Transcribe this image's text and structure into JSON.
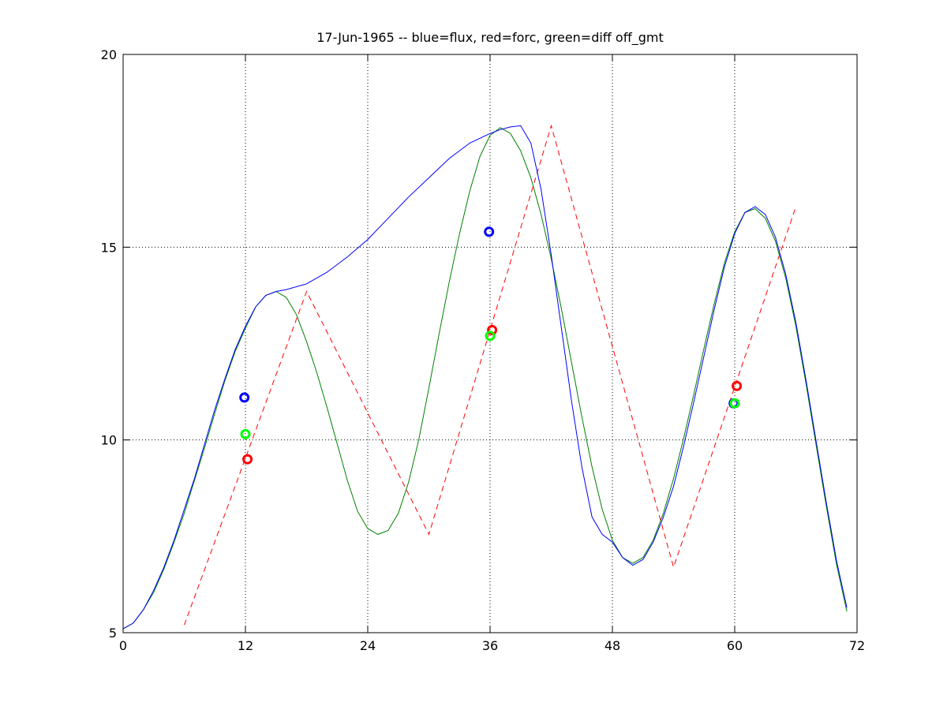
{
  "chart_data": {
    "type": "line",
    "title": "17-Jun-1965 -- blue=flux, red=forc, green=diff off_gmt",
    "xlabel": "",
    "ylabel": "",
    "xlim": [
      0,
      72
    ],
    "ylim": [
      5,
      20
    ],
    "xticks": [
      0,
      12,
      24,
      36,
      48,
      60,
      72
    ],
    "yticks": [
      5,
      10,
      15,
      20
    ],
    "grid": true,
    "grid_lines_x": [
      12,
      24,
      36,
      48,
      60
    ],
    "grid_lines_y": [
      10,
      15
    ],
    "series": [
      {
        "color": "#0000ff",
        "style": "solid",
        "points": [
          [
            0,
            5.1
          ],
          [
            1,
            5.25
          ],
          [
            2,
            5.6
          ],
          [
            3,
            6.1
          ],
          [
            4,
            6.7
          ],
          [
            5,
            7.4
          ],
          [
            6,
            8.2
          ],
          [
            7,
            9.0
          ],
          [
            8,
            9.9
          ],
          [
            9,
            10.8
          ],
          [
            10,
            11.6
          ],
          [
            11,
            12.35
          ],
          [
            12,
            12.95
          ],
          [
            13,
            13.45
          ],
          [
            14,
            13.75
          ],
          [
            15,
            13.85
          ],
          [
            16,
            13.9
          ],
          [
            18,
            14.05
          ],
          [
            20,
            14.35
          ],
          [
            22,
            14.75
          ],
          [
            24,
            15.2
          ],
          [
            26,
            15.75
          ],
          [
            28,
            16.3
          ],
          [
            30,
            16.8
          ],
          [
            32,
            17.3
          ],
          [
            34,
            17.7
          ],
          [
            36,
            17.95
          ],
          [
            37,
            18.05
          ],
          [
            38,
            18.12
          ],
          [
            39,
            18.15
          ],
          [
            40,
            17.7
          ],
          [
            41,
            16.5
          ],
          [
            42,
            14.8
          ],
          [
            43,
            12.9
          ],
          [
            44,
            11.0
          ],
          [
            45,
            9.3
          ],
          [
            46,
            8.0
          ],
          [
            47,
            7.55
          ],
          [
            48,
            7.35
          ],
          [
            49,
            6.95
          ],
          [
            50,
            6.75
          ],
          [
            51,
            6.9
          ],
          [
            52,
            7.35
          ],
          [
            53,
            8.0
          ],
          [
            54,
            8.8
          ],
          [
            55,
            9.85
          ],
          [
            56,
            11.0
          ],
          [
            57,
            12.2
          ],
          [
            58,
            13.4
          ],
          [
            59,
            14.5
          ],
          [
            60,
            15.35
          ],
          [
            61,
            15.9
          ],
          [
            62,
            16.05
          ],
          [
            63,
            15.85
          ],
          [
            64,
            15.25
          ],
          [
            65,
            14.3
          ],
          [
            66,
            13.05
          ],
          [
            67,
            11.55
          ],
          [
            68,
            9.95
          ],
          [
            69,
            8.35
          ],
          [
            70,
            6.85
          ],
          [
            71,
            5.65
          ]
        ]
      },
      {
        "color": "#008000",
        "style": "solid",
        "points": [
          [
            0,
            5.1
          ],
          [
            1,
            5.25
          ],
          [
            2,
            5.6
          ],
          [
            3,
            6.05
          ],
          [
            4,
            6.65
          ],
          [
            5,
            7.35
          ],
          [
            6,
            8.1
          ],
          [
            7,
            8.95
          ],
          [
            8,
            9.8
          ],
          [
            9,
            10.7
          ],
          [
            10,
            11.55
          ],
          [
            11,
            12.3
          ],
          [
            12,
            12.9
          ],
          [
            13,
            13.45
          ],
          [
            14,
            13.75
          ],
          [
            15,
            13.85
          ],
          [
            16,
            13.7
          ],
          [
            17,
            13.25
          ],
          [
            18,
            12.55
          ],
          [
            19,
            11.75
          ],
          [
            20,
            10.85
          ],
          [
            21,
            9.9
          ],
          [
            22,
            8.95
          ],
          [
            23,
            8.15
          ],
          [
            24,
            7.7
          ],
          [
            25,
            7.55
          ],
          [
            26,
            7.65
          ],
          [
            27,
            8.1
          ],
          [
            28,
            8.9
          ],
          [
            29,
            10.0
          ],
          [
            30,
            11.35
          ],
          [
            31,
            12.75
          ],
          [
            32,
            14.1
          ],
          [
            33,
            15.35
          ],
          [
            34,
            16.45
          ],
          [
            35,
            17.35
          ],
          [
            36,
            17.9
          ],
          [
            37,
            18.1
          ],
          [
            38,
            17.95
          ],
          [
            39,
            17.5
          ],
          [
            40,
            16.8
          ],
          [
            41,
            15.85
          ],
          [
            42,
            14.7
          ],
          [
            43,
            13.4
          ],
          [
            44,
            12.0
          ],
          [
            45,
            10.6
          ],
          [
            46,
            9.3
          ],
          [
            47,
            8.2
          ],
          [
            48,
            7.4
          ],
          [
            49,
            6.95
          ],
          [
            50,
            6.8
          ],
          [
            51,
            6.95
          ],
          [
            52,
            7.4
          ],
          [
            53,
            8.1
          ],
          [
            54,
            9.0
          ],
          [
            55,
            10.05
          ],
          [
            56,
            11.2
          ],
          [
            57,
            12.4
          ],
          [
            58,
            13.55
          ],
          [
            59,
            14.6
          ],
          [
            60,
            15.4
          ],
          [
            61,
            15.9
          ],
          [
            62,
            16.0
          ],
          [
            63,
            15.75
          ],
          [
            64,
            15.15
          ],
          [
            65,
            14.2
          ],
          [
            66,
            12.95
          ],
          [
            67,
            11.45
          ],
          [
            68,
            9.85
          ],
          [
            69,
            8.25
          ],
          [
            70,
            6.75
          ],
          [
            71,
            5.55
          ]
        ]
      },
      {
        "color": "#ff0000",
        "style": "dashed",
        "points": [
          [
            6,
            5.2
          ],
          [
            18,
            13.85
          ],
          [
            30,
            7.55
          ],
          [
            42,
            18.15
          ],
          [
            54,
            6.7
          ],
          [
            66,
            16.05
          ]
        ]
      }
    ],
    "markers": [
      {
        "color": "#0000ff",
        "x": 11.9,
        "y": 11.1
      },
      {
        "color": "#00ff00",
        "x": 12.0,
        "y": 10.15
      },
      {
        "color": "#ff0000",
        "x": 12.2,
        "y": 9.5
      },
      {
        "color": "#0000ff",
        "x": 35.9,
        "y": 15.4
      },
      {
        "color": "#ff0000",
        "x": 36.2,
        "y": 12.85
      },
      {
        "color": "#00ff00",
        "x": 36.0,
        "y": 12.7
      },
      {
        "color": "#ff0000",
        "x": 60.2,
        "y": 11.4
      },
      {
        "color": "#0000ff",
        "x": 59.9,
        "y": 10.95
      },
      {
        "color": "#00ff00",
        "x": 60.0,
        "y": 10.95
      }
    ]
  }
}
